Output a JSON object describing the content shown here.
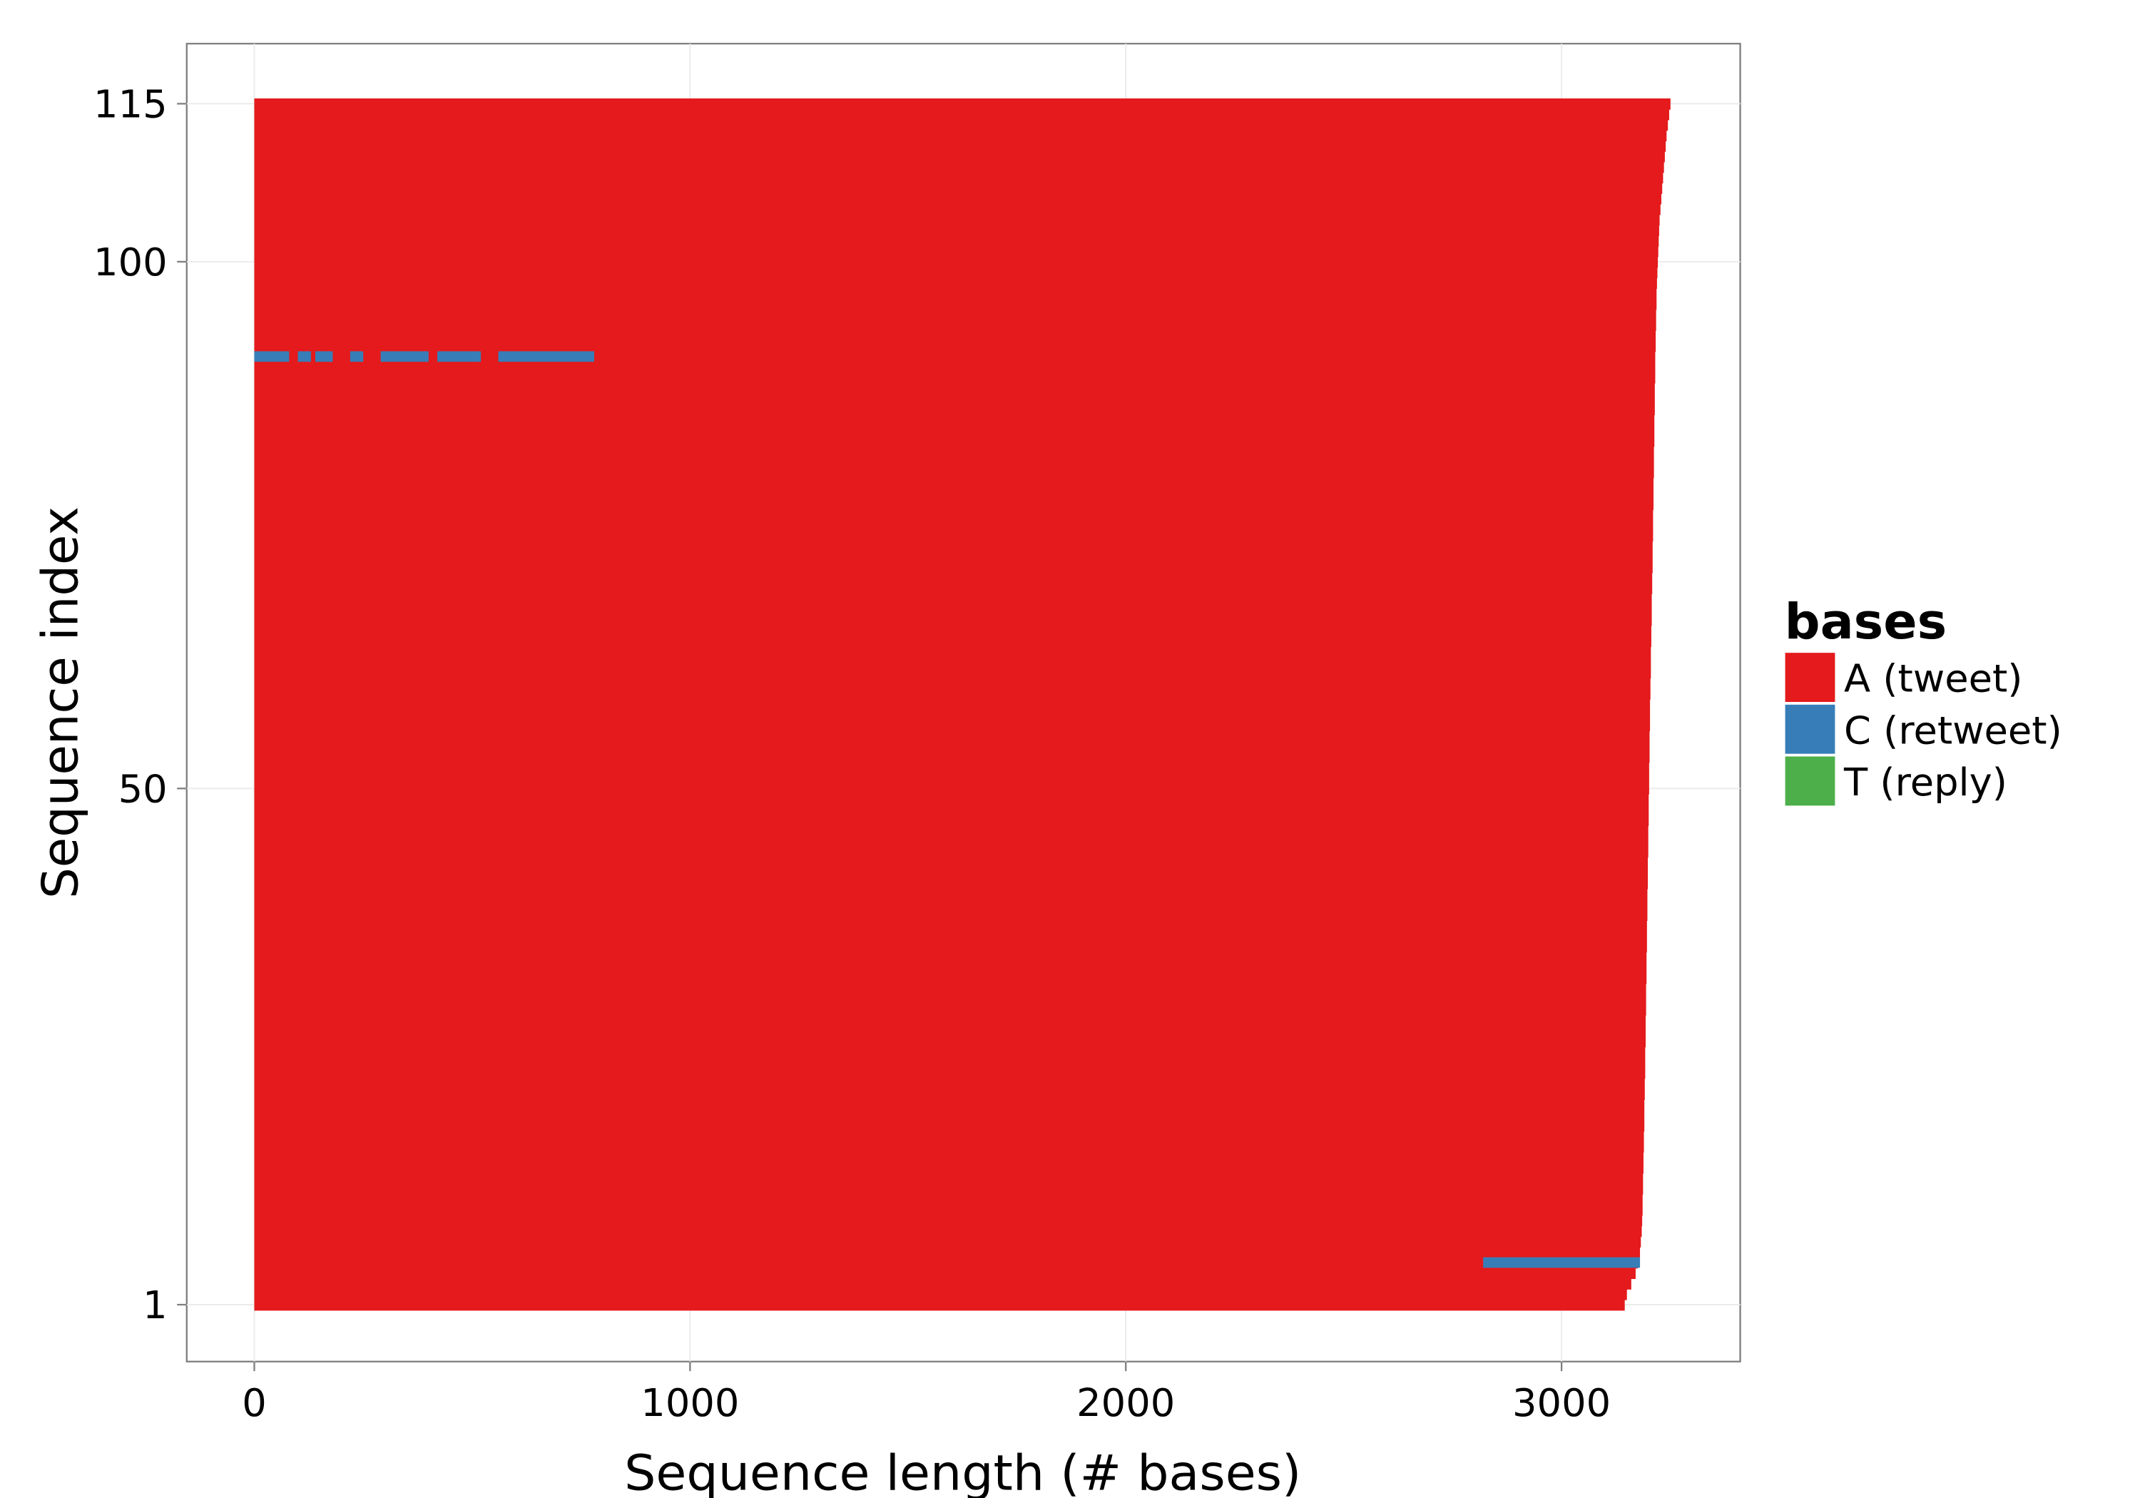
{
  "chart_data": {
    "type": "sequence",
    "x_label": "Sequence length (# bases)",
    "y_label": "Sequence index",
    "legend_title": "bases",
    "legend_position": "right",
    "grid": true,
    "xlim": [
      -155,
      3410
    ],
    "xticks": [
      0,
      1000,
      2000,
      3000
    ],
    "ylim": [
      -4.4,
      120.7
    ],
    "yticks": [
      1,
      50,
      100,
      115
    ],
    "series": [
      {
        "name": "A (tweet)",
        "color": "#e41a1c",
        "values": [
          3145,
          3150,
          3160,
          3170,
          3175,
          3180,
          3182,
          3184,
          3185,
          3186,
          3186,
          3187,
          3187,
          3188,
          3188,
          3189,
          3189,
          3190,
          3190,
          3190,
          3191,
          3191,
          3192,
          3192,
          3192,
          3193,
          3193,
          3193,
          3194,
          3194,
          3194,
          3195,
          3195,
          3195,
          3196,
          3196,
          3196,
          3197,
          3197,
          3197,
          3198,
          3198,
          3198,
          3199,
          3199,
          3199,
          3200,
          3200,
          3200,
          3201,
          3201,
          3201,
          3202,
          3202,
          3202,
          3203,
          3203,
          3203,
          3204,
          3204,
          3205,
          3205,
          3205,
          3206,
          3206,
          3207,
          3207,
          3207,
          3208,
          3208,
          3209,
          3209,
          3209,
          3210,
          3210,
          3210,
          3211,
          3211,
          3211,
          3212,
          3212,
          3212,
          3213,
          3213,
          3213,
          3214,
          3214,
          3214,
          3215,
          3215,
          3215,
          3216,
          3216,
          3217,
          3217,
          3218,
          3218,
          3219,
          3220,
          3221,
          3222,
          3223,
          3224,
          3225,
          3227,
          3229,
          3231,
          3233,
          3235,
          3237,
          3239,
          3241,
          3244,
          3247,
          3250
        ]
      },
      {
        "name": "C (retweet)",
        "color": "#377eb8",
        "segments": [
          [
            5,
            2820,
            3180
          ],
          [
            91,
            0,
            80
          ],
          [
            91,
            100,
            130
          ],
          [
            91,
            140,
            180
          ],
          [
            91,
            220,
            250
          ],
          [
            91,
            290,
            400
          ],
          [
            91,
            420,
            520
          ],
          [
            91,
            560,
            780
          ]
        ]
      },
      {
        "name": "T (reply)",
        "color": "#4daf4a",
        "segments": []
      }
    ]
  }
}
